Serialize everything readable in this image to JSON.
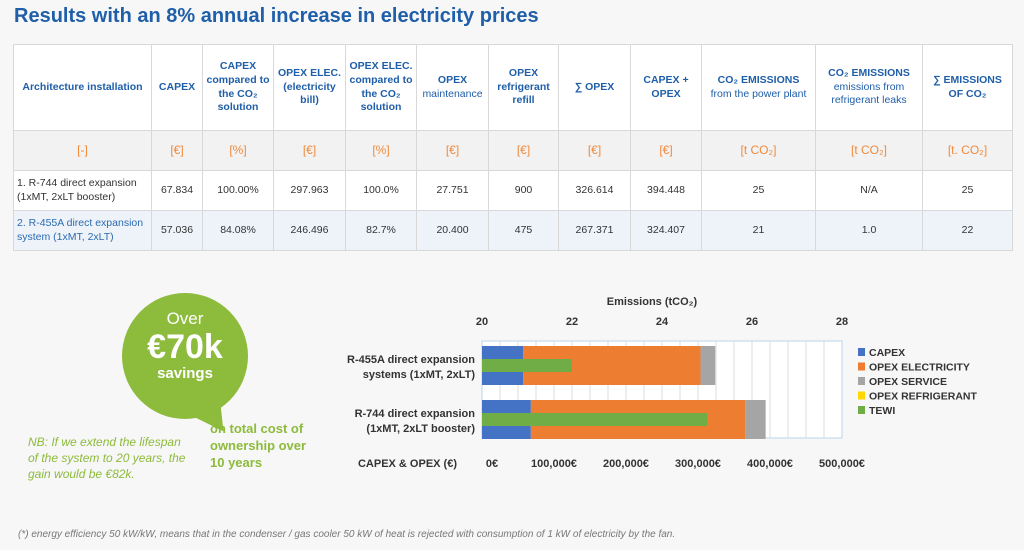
{
  "title": "Results with an 8% annual increase in electricity prices",
  "table": {
    "headers": [
      {
        "main": "Architecture installation",
        "sub": ""
      },
      {
        "main": "CAPEX",
        "sub": ""
      },
      {
        "main": "CAPEX compared to the CO₂ solution",
        "sub": ""
      },
      {
        "main": "OPEX ELEC. (electricity bill)",
        "sub": ""
      },
      {
        "main": "OPEX ELEC. compared to the CO₂ solution",
        "sub": ""
      },
      {
        "main": "OPEX",
        "sub": "maintenance"
      },
      {
        "main": "OPEX refrigerant refill",
        "sub": ""
      },
      {
        "main": "∑ OPEX",
        "sub": ""
      },
      {
        "main": "CAPEX + OPEX",
        "sub": ""
      },
      {
        "main": "CO₂ EMISSIONS",
        "sub": "from the power plant"
      },
      {
        "main": "CO₂ EMISSIONS",
        "sub": "emissions from refrigerant leaks"
      },
      {
        "main": "∑ EMISSIONS OF CO₂",
        "sub": ""
      }
    ],
    "units": [
      "[-]",
      "[€]",
      "[%]",
      "[€]",
      "[%]",
      "[€]",
      "[€]",
      "[€]",
      "[€]",
      "[t CO₂]",
      "[t CO₂]",
      "[t. CO₂]"
    ],
    "rows": [
      [
        "1. R-744 direct expansion (1xMT, 2xLT booster)",
        "67.834",
        "100.00%",
        "297.963",
        "100.0%",
        "27.751",
        "900",
        "326.614",
        "394.448",
        "25",
        "N/A",
        "25"
      ],
      [
        "2. R-455A direct expansion system (1xMT, 2xLT)",
        "57.036",
        "84.08%",
        "246.496",
        "82.7%",
        "20.400",
        "475",
        "267.371",
        "324.407",
        "21",
        "1.0",
        "22"
      ]
    ]
  },
  "savings": {
    "over": "Over",
    "amount": "€70k",
    "label": "savings",
    "tco": "on total cost of ownership over 10 years",
    "nb": "NB: If we extend the lifespan of the system to 20 years, the gain would be €82k."
  },
  "footnote": "(*) energy efficiency 50 kW/kW, means that in the condenser / gas cooler 50 kW of heat is rejected with consumption of 1 kW of electricity by the fan.",
  "chart_data": {
    "type": "bar",
    "orientation": "horizontal-stacked",
    "top_axis_title": "Emissions (tCO₂)",
    "top_axis_range": [
      20,
      28
    ],
    "top_ticks": [
      "20",
      "22",
      "24",
      "26",
      "28"
    ],
    "bottom_axis_title": "CAPEX & OPEX (€)",
    "bottom_axis_range": [
      0,
      500000
    ],
    "bottom_ticks": [
      "0€",
      "100,000€",
      "200,000€",
      "300,000€",
      "400,000€",
      "500,000€"
    ],
    "categories": [
      "R-455A direct expansion systems (1xMT, 2xLT)",
      "R-744 direct expansion (1xMT, 2xLT booster)"
    ],
    "series": [
      {
        "name": "CAPEX",
        "color": "#4472c4",
        "values": [
          57036,
          67834
        ]
      },
      {
        "name": "OPEX ELECTRICITY",
        "color": "#ed7d31",
        "values": [
          246496,
          297963
        ]
      },
      {
        "name": "OPEX SERVICE",
        "color": "#a5a5a5",
        "values": [
          20400,
          27751
        ]
      },
      {
        "name": "OPEX REFRIGERANT",
        "color": "#ffd700",
        "values": [
          475,
          900
        ]
      }
    ],
    "tewi": {
      "name": "TEWI",
      "color": "#70ad47",
      "values": [
        22,
        25
      ]
    },
    "legend": "right"
  }
}
